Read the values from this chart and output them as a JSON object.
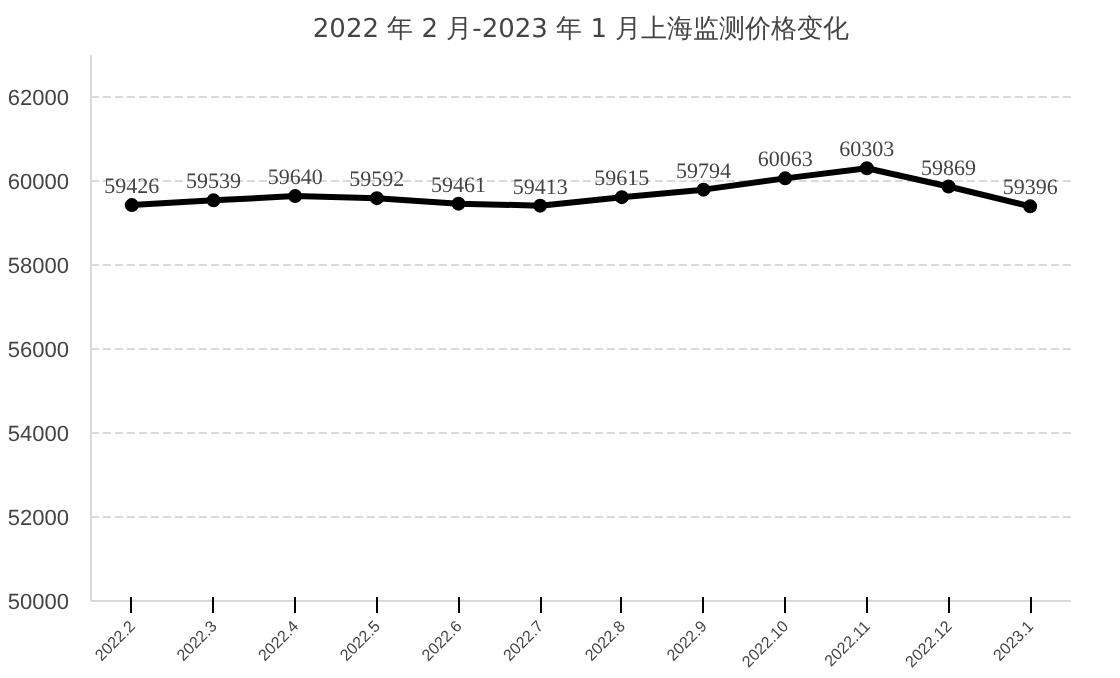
{
  "chart_data": {
    "type": "line",
    "title": "2022 年 2 月-2023 年 1 月上海监测价格变化",
    "categories": [
      "2022.2",
      "2022.3",
      "2022.4",
      "2022.5",
      "2022.6",
      "2022.7",
      "2022.8",
      "2022.9",
      "2022.10",
      "2022.11",
      "2022.12",
      "2023.1"
    ],
    "series": [
      {
        "color": "#000000",
        "values": [
          59426,
          59539,
          59640,
          59592,
          59461,
          59413,
          59615,
          59794,
          60063,
          60303,
          59869,
          59396
        ]
      }
    ],
    "ylim": [
      50000,
      63000
    ],
    "yticks": [
      50000,
      52000,
      54000,
      56000,
      58000,
      60000,
      62000
    ],
    "grid": "y",
    "marker": "circle",
    "line_style": "solid",
    "data_labels": true
  }
}
